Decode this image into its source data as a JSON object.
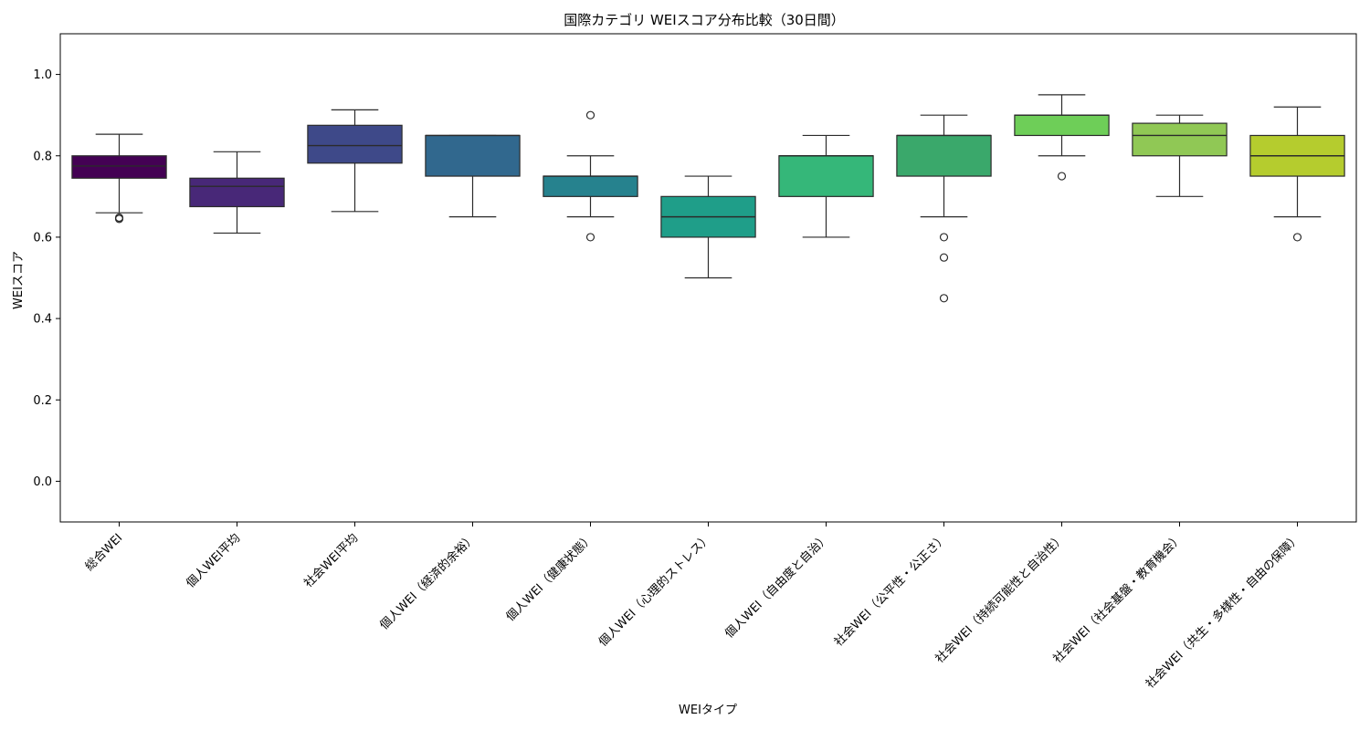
{
  "chart_data": {
    "type": "box",
    "title": "国際カテゴリ WEIスコア分布比較（30日間）",
    "xlabel": "WEIタイプ",
    "ylabel": "WEIスコア",
    "ylim": [
      -0.1,
      1.1
    ],
    "yticks": [
      "0.0",
      "0.2",
      "0.4",
      "0.6",
      "0.8",
      "1.0"
    ],
    "grid": false,
    "legend": "none",
    "categories": [
      "総合WEI",
      "個人WEI平均",
      "社会WEI平均",
      "個人WEI（経済的余裕）",
      "個人WEI（健康状態）",
      "個人WEI（心理的ストレス）",
      "個人WEI（自由度と自治）",
      "社会WEI（公平性・公正さ）",
      "社会WEI（持続可能性と自治性）",
      "社会WEI（社会基盤・教育機会）",
      "社会WEI（共生・多様性・自由の保障）"
    ],
    "boxes": [
      {
        "whisker_low": 0.66,
        "q1": 0.745,
        "median": 0.775,
        "q3": 0.8,
        "whisker_high": 0.853,
        "outliers": [
          0.645,
          0.648
        ],
        "color": "#440154"
      },
      {
        "whisker_low": 0.61,
        "q1": 0.675,
        "median": 0.725,
        "q3": 0.745,
        "whisker_high": 0.81,
        "outliers": [],
        "color": "#482878"
      },
      {
        "whisker_low": 0.663,
        "q1": 0.782,
        "median": 0.825,
        "q3": 0.875,
        "whisker_high": 0.913,
        "outliers": [],
        "color": "#3e4989"
      },
      {
        "whisker_low": 0.65,
        "q1": 0.75,
        "median": 0.85,
        "q3": 0.85,
        "whisker_high": 0.85,
        "outliers": [],
        "color": "#31688e"
      },
      {
        "whisker_low": 0.65,
        "q1": 0.7,
        "median": 0.75,
        "q3": 0.75,
        "whisker_high": 0.8,
        "outliers": [
          0.6,
          0.9
        ],
        "color": "#26828e"
      },
      {
        "whisker_low": 0.5,
        "q1": 0.6,
        "median": 0.65,
        "q3": 0.7,
        "whisker_high": 0.75,
        "outliers": [],
        "color": "#1f9e89"
      },
      {
        "whisker_low": 0.6,
        "q1": 0.7,
        "median": 0.8,
        "q3": 0.8,
        "whisker_high": 0.85,
        "outliers": [],
        "color": "#35b779"
      },
      {
        "whisker_low": 0.65,
        "q1": 0.75,
        "median": 0.85,
        "q3": 0.85,
        "whisker_high": 0.9,
        "outliers": [
          0.6,
          0.55,
          0.45
        ],
        "color": "#3aa86b"
      },
      {
        "whisker_low": 0.8,
        "q1": 0.85,
        "median": 0.9,
        "q3": 0.9,
        "whisker_high": 0.95,
        "outliers": [
          0.75
        ],
        "color": "#6ece58"
      },
      {
        "whisker_low": 0.7,
        "q1": 0.8,
        "median": 0.85,
        "q3": 0.88,
        "whisker_high": 0.9,
        "outliers": [],
        "color": "#90c855"
      },
      {
        "whisker_low": 0.65,
        "q1": 0.75,
        "median": 0.8,
        "q3": 0.85,
        "whisker_high": 0.92,
        "outliers": [
          0.6
        ],
        "color": "#b5cc2e"
      }
    ]
  }
}
